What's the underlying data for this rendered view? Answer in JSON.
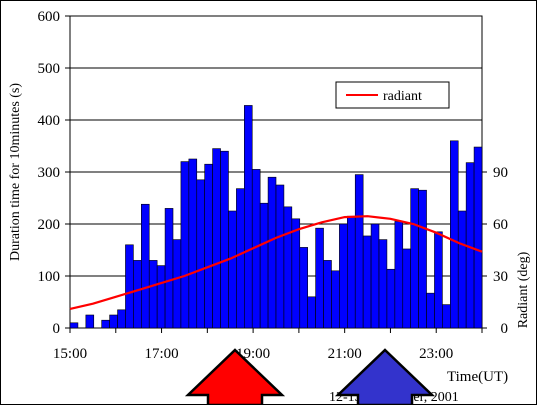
{
  "chart_data": {
    "type": "bar",
    "y_left_label": "Duration time for 10minutes (s)",
    "y_right_label": "Radiant (deg)",
    "x_label": "Time(UT)",
    "date_label": "12-13 November, 2001",
    "legend_label": "radiant",
    "y_left_ticks": [
      "0",
      "100",
      "200",
      "300",
      "400",
      "500",
      "600"
    ],
    "y_right_ticks": [
      "0",
      "30",
      "60",
      "90"
    ],
    "x_ticks": [
      "15:00",
      "17:00",
      "19:00",
      "21:00",
      "23:00"
    ],
    "ylim": [
      0,
      600
    ],
    "y_right_lim": [
      0,
      90
    ],
    "x_range_hours": [
      15,
      24
    ],
    "bar_color": "#0000ff",
    "line_color": "#ff0000",
    "arrow_left_color": "#ff0000",
    "arrow_right_color": "#3333cc",
    "grid": true,
    "legend_position": "top-right",
    "bars": [
      10,
      0,
      25,
      0,
      15,
      25,
      35,
      160,
      130,
      238,
      130,
      120,
      230,
      170,
      320,
      325,
      285,
      315,
      345,
      340,
      225,
      268,
      428,
      305,
      240,
      290,
      275,
      233,
      210,
      155,
      60,
      192,
      130,
      110,
      200,
      215,
      295,
      177,
      200,
      170,
      113,
      205,
      152,
      268,
      265,
      67,
      185,
      45,
      360,
      225,
      318,
      348
    ],
    "radiant": [
      [
        15.0,
        11
      ],
      [
        15.5,
        14
      ],
      [
        16.0,
        18
      ],
      [
        16.5,
        22
      ],
      [
        17.0,
        26
      ],
      [
        17.5,
        30
      ],
      [
        18.0,
        35
      ],
      [
        18.5,
        40
      ],
      [
        19.0,
        46
      ],
      [
        19.5,
        52
      ],
      [
        20.0,
        57
      ],
      [
        20.5,
        61
      ],
      [
        21.0,
        64
      ],
      [
        21.5,
        64.5
      ],
      [
        22.0,
        63
      ],
      [
        22.5,
        60
      ],
      [
        23.0,
        55
      ],
      [
        23.5,
        49
      ],
      [
        24.0,
        44
      ]
    ]
  }
}
